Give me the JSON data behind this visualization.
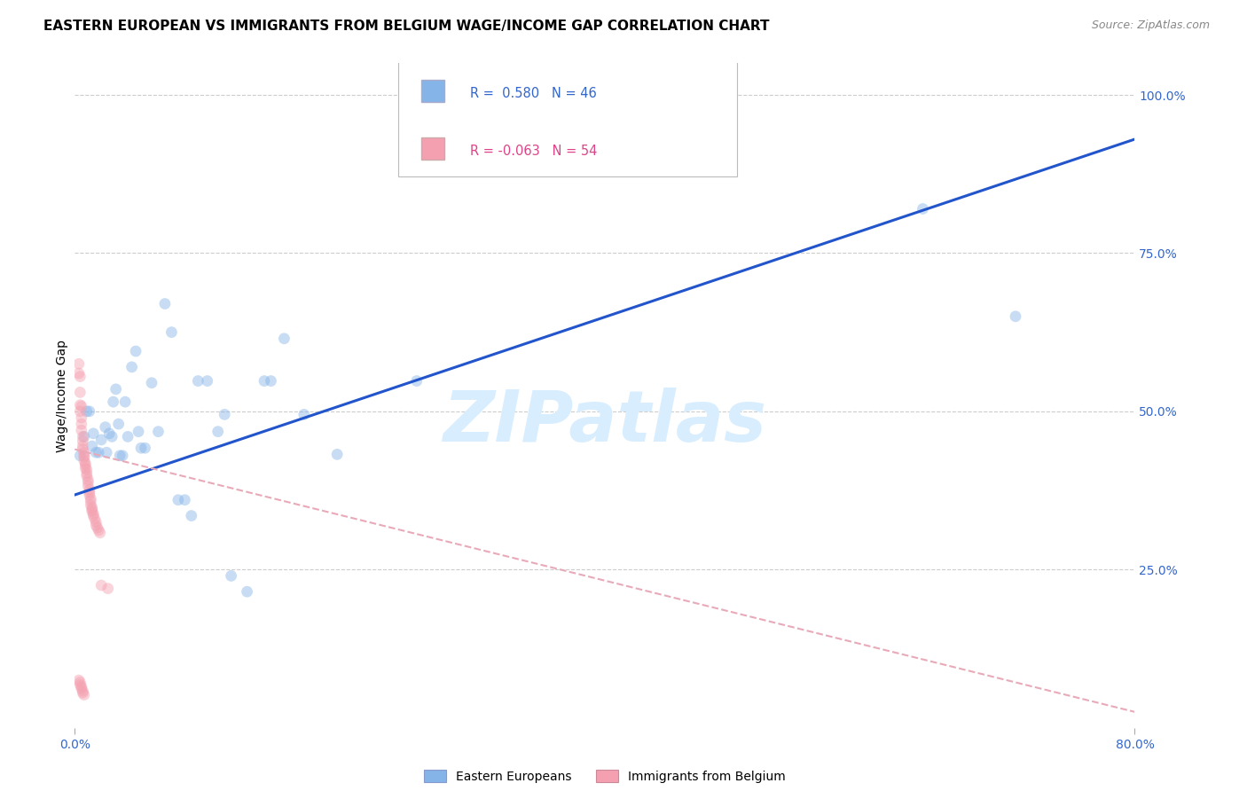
{
  "title": "EASTERN EUROPEAN VS IMMIGRANTS FROM BELGIUM WAGE/INCOME GAP CORRELATION CHART",
  "source": "Source: ZipAtlas.com",
  "ylabel": "Wage/Income Gap",
  "x_min": 0.0,
  "x_max": 0.8,
  "y_min": 0.0,
  "y_max": 1.05,
  "watermark": "ZIPatlas",
  "legend": {
    "series1_label": "Eastern Europeans",
    "series2_label": "Immigrants from Belgium",
    "series1_R": " 0.580",
    "series1_N": "46",
    "series2_R": "-0.063",
    "series2_N": "54"
  },
  "blue_color": "#85B4E8",
  "pink_color": "#F4A0B0",
  "blue_line_color": "#2255CC",
  "pink_line_color": "#E8AAB8",
  "blue_scatter": [
    [
      0.004,
      0.43
    ],
    [
      0.007,
      0.46
    ],
    [
      0.009,
      0.5
    ],
    [
      0.011,
      0.5
    ],
    [
      0.013,
      0.445
    ],
    [
      0.014,
      0.465
    ],
    [
      0.016,
      0.435
    ],
    [
      0.018,
      0.435
    ],
    [
      0.02,
      0.455
    ],
    [
      0.023,
      0.475
    ],
    [
      0.024,
      0.435
    ],
    [
      0.026,
      0.465
    ],
    [
      0.028,
      0.46
    ],
    [
      0.029,
      0.515
    ],
    [
      0.031,
      0.535
    ],
    [
      0.033,
      0.48
    ],
    [
      0.034,
      0.43
    ],
    [
      0.036,
      0.43
    ],
    [
      0.038,
      0.515
    ],
    [
      0.04,
      0.46
    ],
    [
      0.043,
      0.57
    ],
    [
      0.046,
      0.595
    ],
    [
      0.048,
      0.468
    ],
    [
      0.05,
      0.442
    ],
    [
      0.053,
      0.442
    ],
    [
      0.058,
      0.545
    ],
    [
      0.063,
      0.468
    ],
    [
      0.068,
      0.67
    ],
    [
      0.073,
      0.625
    ],
    [
      0.078,
      0.36
    ],
    [
      0.083,
      0.36
    ],
    [
      0.088,
      0.335
    ],
    [
      0.093,
      0.548
    ],
    [
      0.1,
      0.548
    ],
    [
      0.108,
      0.468
    ],
    [
      0.113,
      0.495
    ],
    [
      0.118,
      0.24
    ],
    [
      0.13,
      0.215
    ],
    [
      0.143,
      0.548
    ],
    [
      0.148,
      0.548
    ],
    [
      0.158,
      0.615
    ],
    [
      0.173,
      0.495
    ],
    [
      0.198,
      0.432
    ],
    [
      0.258,
      0.548
    ],
    [
      0.64,
      0.82
    ],
    [
      0.71,
      0.65
    ]
  ],
  "pink_scatter": [
    [
      0.003,
      0.575
    ],
    [
      0.003,
      0.56
    ],
    [
      0.004,
      0.555
    ],
    [
      0.004,
      0.53
    ],
    [
      0.004,
      0.5
    ],
    [
      0.005,
      0.49
    ],
    [
      0.005,
      0.48
    ],
    [
      0.005,
      0.47
    ],
    [
      0.006,
      0.46
    ],
    [
      0.006,
      0.453
    ],
    [
      0.006,
      0.445
    ],
    [
      0.006,
      0.44
    ],
    [
      0.007,
      0.435
    ],
    [
      0.007,
      0.43
    ],
    [
      0.007,
      0.428
    ],
    [
      0.007,
      0.422
    ],
    [
      0.008,
      0.418
    ],
    [
      0.008,
      0.415
    ],
    [
      0.008,
      0.41
    ],
    [
      0.009,
      0.408
    ],
    [
      0.009,
      0.402
    ],
    [
      0.009,
      0.398
    ],
    [
      0.01,
      0.392
    ],
    [
      0.01,
      0.388
    ],
    [
      0.01,
      0.382
    ],
    [
      0.011,
      0.376
    ],
    [
      0.011,
      0.372
    ],
    [
      0.011,
      0.368
    ],
    [
      0.012,
      0.362
    ],
    [
      0.012,
      0.358
    ],
    [
      0.012,
      0.352
    ],
    [
      0.013,
      0.348
    ],
    [
      0.013,
      0.345
    ],
    [
      0.013,
      0.342
    ],
    [
      0.014,
      0.338
    ],
    [
      0.014,
      0.335
    ],
    [
      0.015,
      0.33
    ],
    [
      0.016,
      0.325
    ],
    [
      0.016,
      0.32
    ],
    [
      0.017,
      0.316
    ],
    [
      0.018,
      0.312
    ],
    [
      0.019,
      0.308
    ],
    [
      0.02,
      0.225
    ],
    [
      0.025,
      0.22
    ],
    [
      0.003,
      0.075
    ],
    [
      0.004,
      0.072
    ],
    [
      0.004,
      0.068
    ],
    [
      0.005,
      0.065
    ],
    [
      0.005,
      0.062
    ],
    [
      0.006,
      0.058
    ],
    [
      0.006,
      0.055
    ],
    [
      0.007,
      0.052
    ],
    [
      0.004,
      0.51
    ],
    [
      0.005,
      0.508
    ]
  ],
  "blue_line": {
    "x0": 0.0,
    "x1": 0.8,
    "y0": 0.368,
    "y1": 0.93
  },
  "pink_line": {
    "x0": 0.0,
    "x1": 0.8,
    "y0": 0.44,
    "y1": 0.025
  },
  "grid_color": "#CCCCCC",
  "background_color": "#FFFFFF",
  "title_fontsize": 11,
  "axis_label_fontsize": 10,
  "tick_fontsize": 10,
  "watermark_fontsize": 58,
  "watermark_color": "#D8EEFF",
  "scatter_size": 85,
  "scatter_alpha": 0.45,
  "right_yticks": [
    1.0,
    0.75,
    0.5,
    0.25
  ],
  "right_yticklabels": [
    "100.0%",
    "75.0%",
    "50.0%",
    "25.0%"
  ],
  "xticks": [
    0.0,
    0.8
  ],
  "xticklabels": [
    "0.0%",
    "80.0%"
  ]
}
